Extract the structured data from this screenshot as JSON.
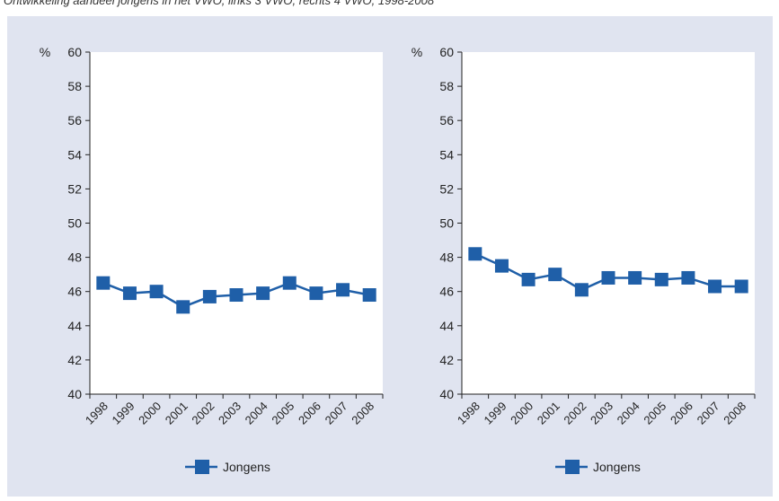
{
  "caption": "Ontwikkeling aandeel jongens in het VWO, links 3 VWO, rechts 4 VWO, 1998-2008",
  "colors": {
    "series": "#1f5fa8",
    "panel": "#e0e4f0",
    "plot": "#ffffff",
    "axis": "#222222"
  },
  "chart_data": [
    {
      "type": "line",
      "title": "",
      "xlabel": "",
      "ylabel": "%",
      "ylim": [
        40,
        60
      ],
      "yticks": [
        40,
        42,
        44,
        46,
        48,
        50,
        52,
        54,
        56,
        58,
        60
      ],
      "categories": [
        "1998",
        "1999",
        "2000",
        "2001",
        "2002",
        "2003",
        "2004",
        "2005",
        "2006",
        "2007",
        "2008"
      ],
      "series": [
        {
          "name": "Jongens",
          "values": [
            46.5,
            45.9,
            46.0,
            45.1,
            45.7,
            45.8,
            45.9,
            46.5,
            45.9,
            46.1,
            45.8
          ]
        }
      ],
      "grid": false,
      "legend": "bottom-center"
    },
    {
      "type": "line",
      "title": "",
      "xlabel": "",
      "ylabel": "%",
      "ylim": [
        40,
        60
      ],
      "yticks": [
        40,
        42,
        44,
        46,
        48,
        50,
        52,
        54,
        56,
        58,
        60
      ],
      "categories": [
        "1998",
        "1999",
        "2000",
        "2001",
        "2002",
        "2003",
        "2004",
        "2005",
        "2006",
        "2007",
        "2008"
      ],
      "series": [
        {
          "name": "Jongens",
          "values": [
            48.2,
            47.5,
            46.7,
            47.0,
            46.1,
            46.8,
            46.8,
            46.7,
            46.8,
            46.3,
            46.3
          ]
        }
      ],
      "grid": false,
      "legend": "bottom-center"
    }
  ]
}
